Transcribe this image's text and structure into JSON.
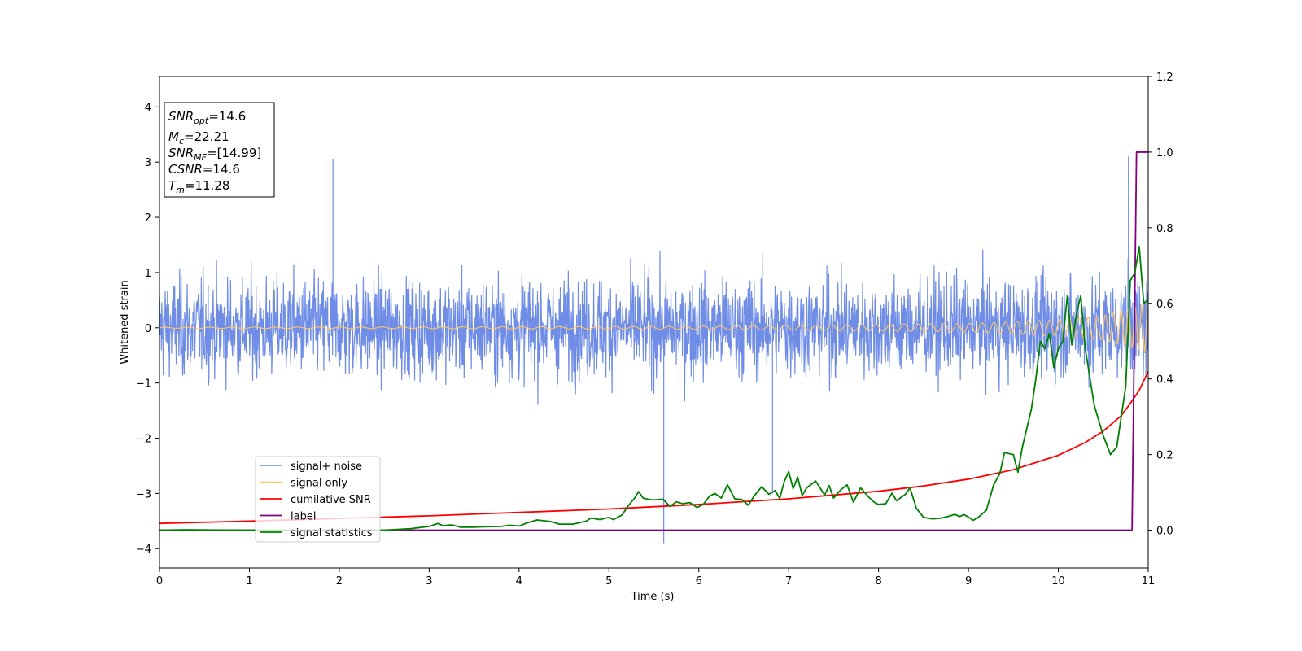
{
  "chart_data": {
    "type": "line",
    "xlabel": "Time (s)",
    "ylabel": "Whitened strain",
    "xlim": [
      0,
      11
    ],
    "ylim_left": [
      -4.35,
      4.55
    ],
    "ylim_right": [
      -0.1,
      1.2
    ],
    "xticks": [
      0,
      1,
      2,
      3,
      4,
      5,
      6,
      7,
      8,
      9,
      10,
      11
    ],
    "yticks_left": [
      -4,
      -3,
      -2,
      -1,
      0,
      1,
      2,
      3,
      4
    ],
    "yticks_right": [
      "0.0",
      "0.2",
      "0.4",
      "0.6",
      "0.8",
      "1.0",
      "1.2"
    ],
    "legend_position": "lower-left",
    "stats_box": {
      "snr_opt": {
        "label": "SNR",
        "sub": "opt",
        "value": "=14.6"
      },
      "mc": {
        "label": "M",
        "sub": "c",
        "value": "=22.21"
      },
      "snr_mf": {
        "label": "SNR",
        "sub": "MF",
        "value": "=[14.99]"
      },
      "csnr": {
        "label": "CSNR",
        "sub": "",
        "value": "=14.6"
      },
      "tm": {
        "label": "T",
        "sub": "m",
        "value": "=11.28"
      }
    },
    "series": [
      {
        "name": "signal+ noise",
        "axis": "left",
        "color": "#6f8de6",
        "style": "dense-noise",
        "noise_envelope": {
          "typical_amplitude": 1.6,
          "max": 3.1,
          "min": -3.9
        },
        "notable_points": [
          [
            5.61,
            -3.9
          ],
          [
            5.62,
            -0.5
          ],
          [
            1.93,
            3.05
          ],
          [
            6.82,
            -3.0
          ],
          [
            10.78,
            3.1
          ]
        ]
      },
      {
        "name": "signal only",
        "axis": "left",
        "color": "#ffc766",
        "style": "chirp",
        "envelope": [
          [
            0,
            0.01
          ],
          [
            4,
            0.02
          ],
          [
            6,
            0.03
          ],
          [
            8,
            0.06
          ],
          [
            9,
            0.08
          ],
          [
            10,
            0.15
          ],
          [
            10.5,
            0.22
          ],
          [
            11,
            0.45
          ]
        ]
      },
      {
        "name": "cumilative SNR",
        "axis": "right",
        "color": "#ff0000",
        "points": [
          [
            0,
            0.018
          ],
          [
            1,
            0.024
          ],
          [
            2,
            0.031
          ],
          [
            3,
            0.038
          ],
          [
            4,
            0.047
          ],
          [
            5,
            0.056
          ],
          [
            6,
            0.068
          ],
          [
            7,
            0.083
          ],
          [
            8,
            0.103
          ],
          [
            8.5,
            0.117
          ],
          [
            9,
            0.135
          ],
          [
            9.5,
            0.16
          ],
          [
            10,
            0.198
          ],
          [
            10.3,
            0.232
          ],
          [
            10.5,
            0.262
          ],
          [
            10.7,
            0.303
          ],
          [
            10.8,
            0.335
          ],
          [
            10.9,
            0.37
          ],
          [
            11,
            0.42
          ]
        ]
      },
      {
        "name": "label",
        "axis": "right",
        "color": "#800080",
        "points": [
          [
            0,
            0.0
          ],
          [
            10.82,
            0.0
          ],
          [
            10.87,
            1.0
          ],
          [
            11,
            1.0
          ]
        ]
      },
      {
        "name": "signal statistics",
        "axis": "right",
        "color": "#008000",
        "points": [
          [
            0,
            0.0
          ],
          [
            0.3,
            0.001
          ],
          [
            1.0,
            0.0
          ],
          [
            2.5,
            0.0
          ],
          [
            2.8,
            0.004
          ],
          [
            3.0,
            0.01
          ],
          [
            3.1,
            0.018
          ],
          [
            3.15,
            0.012
          ],
          [
            3.25,
            0.014
          ],
          [
            3.35,
            0.008
          ],
          [
            3.5,
            0.008
          ],
          [
            3.6,
            0.009
          ],
          [
            3.8,
            0.01
          ],
          [
            3.9,
            0.013
          ],
          [
            4.0,
            0.011
          ],
          [
            4.1,
            0.02
          ],
          [
            4.2,
            0.027
          ],
          [
            4.35,
            0.023
          ],
          [
            4.45,
            0.016
          ],
          [
            4.6,
            0.016
          ],
          [
            4.75,
            0.024
          ],
          [
            4.8,
            0.032
          ],
          [
            4.9,
            0.028
          ],
          [
            5.0,
            0.034
          ],
          [
            5.05,
            0.028
          ],
          [
            5.15,
            0.041
          ],
          [
            5.2,
            0.06
          ],
          [
            5.28,
            0.083
          ],
          [
            5.33,
            0.102
          ],
          [
            5.38,
            0.085
          ],
          [
            5.45,
            0.081
          ],
          [
            5.5,
            0.08
          ],
          [
            5.6,
            0.082
          ],
          [
            5.68,
            0.063
          ],
          [
            5.75,
            0.075
          ],
          [
            5.82,
            0.07
          ],
          [
            5.9,
            0.073
          ],
          [
            5.98,
            0.06
          ],
          [
            6.05,
            0.068
          ],
          [
            6.12,
            0.09
          ],
          [
            6.18,
            0.097
          ],
          [
            6.25,
            0.085
          ],
          [
            6.32,
            0.12
          ],
          [
            6.4,
            0.083
          ],
          [
            6.48,
            0.081
          ],
          [
            6.55,
            0.066
          ],
          [
            6.62,
            0.092
          ],
          [
            6.7,
            0.115
          ],
          [
            6.78,
            0.095
          ],
          [
            6.85,
            0.105
          ],
          [
            6.9,
            0.084
          ],
          [
            6.95,
            0.128
          ],
          [
            7.0,
            0.155
          ],
          [
            7.05,
            0.11
          ],
          [
            7.1,
            0.14
          ],
          [
            7.15,
            0.092
          ],
          [
            7.2,
            0.112
          ],
          [
            7.3,
            0.13
          ],
          [
            7.4,
            0.093
          ],
          [
            7.45,
            0.118
          ],
          [
            7.5,
            0.085
          ],
          [
            7.58,
            0.107
          ],
          [
            7.65,
            0.12
          ],
          [
            7.72,
            0.074
          ],
          [
            7.8,
            0.112
          ],
          [
            7.88,
            0.09
          ],
          [
            7.95,
            0.074
          ],
          [
            8.0,
            0.068
          ],
          [
            8.08,
            0.07
          ],
          [
            8.15,
            0.098
          ],
          [
            8.2,
            0.078
          ],
          [
            8.3,
            0.095
          ],
          [
            8.35,
            0.112
          ],
          [
            8.42,
            0.058
          ],
          [
            8.5,
            0.034
          ],
          [
            8.6,
            0.03
          ],
          [
            8.7,
            0.032
          ],
          [
            8.8,
            0.038
          ],
          [
            8.85,
            0.042
          ],
          [
            8.9,
            0.036
          ],
          [
            8.95,
            0.041
          ],
          [
            9.0,
            0.035
          ],
          [
            9.05,
            0.026
          ],
          [
            9.1,
            0.032
          ],
          [
            9.2,
            0.053
          ],
          [
            9.28,
            0.12
          ],
          [
            9.35,
            0.15
          ],
          [
            9.4,
            0.205
          ],
          [
            9.5,
            0.2
          ],
          [
            9.55,
            0.153
          ],
          [
            9.6,
            0.22
          ],
          [
            9.7,
            0.32
          ],
          [
            9.75,
            0.4
          ],
          [
            9.8,
            0.5
          ],
          [
            9.85,
            0.48
          ],
          [
            9.9,
            0.52
          ],
          [
            9.95,
            0.43
          ],
          [
            10.0,
            0.48
          ],
          [
            10.05,
            0.5
          ],
          [
            10.1,
            0.62
          ],
          [
            10.15,
            0.49
          ],
          [
            10.2,
            0.57
          ],
          [
            10.25,
            0.62
          ],
          [
            10.3,
            0.48
          ],
          [
            10.4,
            0.33
          ],
          [
            10.5,
            0.25
          ],
          [
            10.58,
            0.2
          ],
          [
            10.65,
            0.22
          ],
          [
            10.7,
            0.3
          ],
          [
            10.75,
            0.38
          ],
          [
            10.8,
            0.66
          ],
          [
            10.85,
            0.68
          ],
          [
            10.9,
            0.75
          ],
          [
            10.95,
            0.6
          ],
          [
            11.0,
            0.61
          ]
        ]
      }
    ]
  }
}
